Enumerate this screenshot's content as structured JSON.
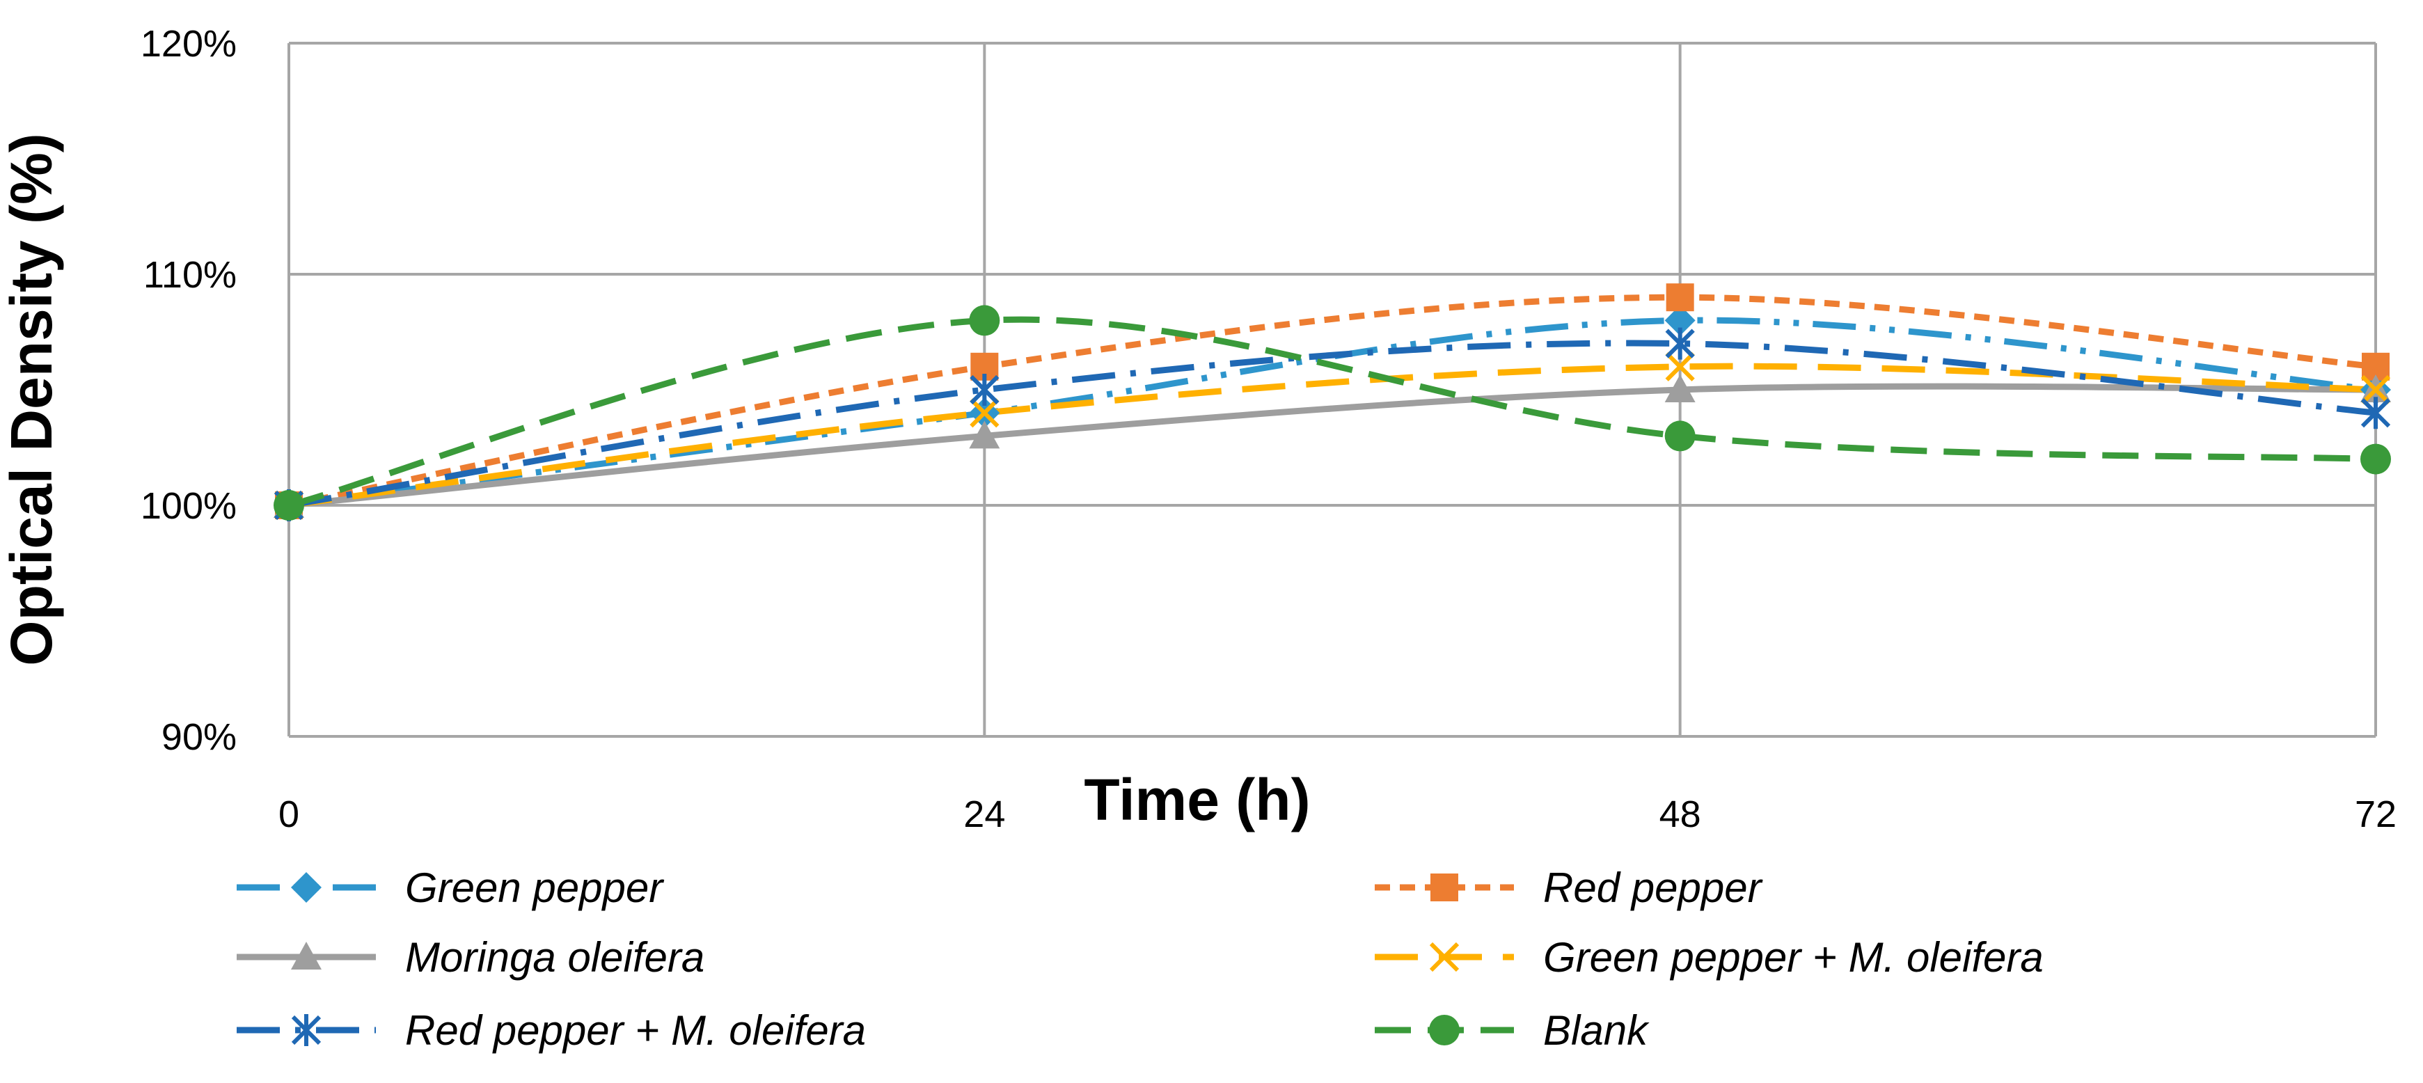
{
  "chart_data": {
    "type": "line",
    "title": "",
    "xlabel": "Time (h)",
    "ylabel": "Optical Density (%)",
    "x": [
      0,
      24,
      48,
      72
    ],
    "x_tick_labels": [
      "0",
      "24",
      "48",
      "72"
    ],
    "ylim": [
      90,
      120
    ],
    "y_tick_labels": [
      "90%",
      "100%",
      "110%",
      "120%"
    ],
    "y_ticks": [
      90,
      100,
      110,
      120
    ],
    "grid": true,
    "smooth": true,
    "legend_position": "bottom",
    "series": [
      {
        "name": "Green pepper",
        "values": [
          100,
          104,
          108,
          105
        ],
        "color": "#2E95CC",
        "marker": "diamond",
        "dash": "long-dash-dot-dot"
      },
      {
        "name": "Red pepper",
        "values": [
          100,
          106,
          109,
          106
        ],
        "color": "#ED7D31",
        "marker": "square",
        "dash": "short-dash"
      },
      {
        "name": "Moringa oleifera",
        "values": [
          100,
          103,
          105,
          105
        ],
        "color": "#9E9E9E",
        "marker": "triangle",
        "dash": "solid"
      },
      {
        "name": "Green pepper + M. oleifera",
        "values": [
          100,
          104,
          106,
          105
        ],
        "color": "#FFB000",
        "marker": "x",
        "dash": "long-dash"
      },
      {
        "name": "Red pepper + M. oleifera",
        "values": [
          100,
          105,
          107,
          104
        ],
        "color": "#1F68B4",
        "marker": "asterisk",
        "dash": "long-dash-dot"
      },
      {
        "name": "Blank",
        "values": [
          100,
          108,
          103,
          102
        ],
        "color": "#3A9A3A",
        "marker": "circle",
        "dash": "dash"
      }
    ]
  }
}
